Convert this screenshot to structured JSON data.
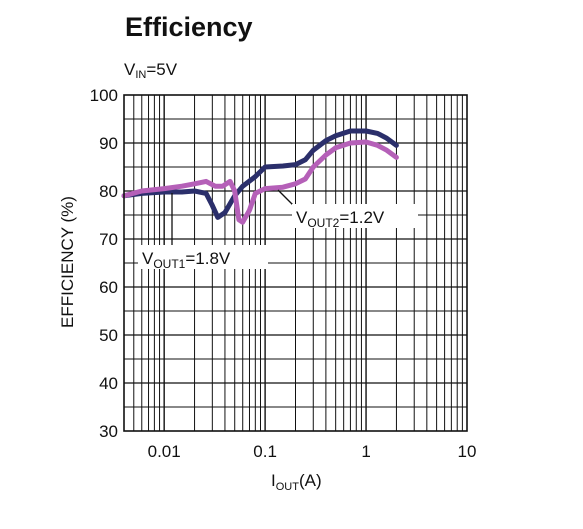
{
  "header": {
    "title": "Efficiency",
    "condition_main": "V",
    "condition_sub": "IN",
    "condition_rest": "=5V"
  },
  "chart_data": {
    "type": "line",
    "title": "Efficiency",
    "subtitle": "VIN=5V",
    "xlabel": "IOUT(A)",
    "ylabel": "EFFICIENCY (%)",
    "xscale": "log",
    "xlim": [
      0.004,
      10
    ],
    "ylim": [
      30,
      100
    ],
    "grid": true,
    "x_ticks": [
      "0.01",
      "0.1",
      "1",
      "10"
    ],
    "y_ticks": [
      "30",
      "40",
      "50",
      "60",
      "70",
      "80",
      "90",
      "100"
    ],
    "series": [
      {
        "name": "VOUT1=1.8V",
        "name_main": "V",
        "name_sub": "OUT1",
        "name_rest": "=1.8V",
        "color": "#2b2f6b",
        "x": [
          0.004,
          0.006,
          0.01,
          0.015,
          0.02,
          0.026,
          0.03,
          0.034,
          0.04,
          0.05,
          0.06,
          0.08,
          0.1,
          0.15,
          0.2,
          0.25,
          0.3,
          0.4,
          0.5,
          0.7,
          1.0,
          1.3,
          1.6,
          2.0
        ],
        "y": [
          79,
          79.5,
          79.8,
          79.8,
          80,
          79.5,
          77,
          74.5,
          75.5,
          79,
          81,
          83,
          85,
          85.2,
          85.5,
          86.5,
          88.5,
          90.5,
          91.5,
          92.5,
          92.5,
          92,
          91,
          89.5
        ]
      },
      {
        "name": "VOUT2=1.2V",
        "name_main": "V",
        "name_sub": "OUT2",
        "name_rest": "=1.2V",
        "color": "#b560b8",
        "x": [
          0.004,
          0.006,
          0.01,
          0.015,
          0.02,
          0.026,
          0.032,
          0.038,
          0.045,
          0.05,
          0.055,
          0.06,
          0.07,
          0.08,
          0.1,
          0.15,
          0.2,
          0.25,
          0.3,
          0.4,
          0.5,
          0.7,
          1.0,
          1.3,
          1.6,
          2.0
        ],
        "y": [
          79,
          80,
          80.5,
          81,
          81.5,
          82,
          81,
          81,
          82,
          80,
          74,
          73.5,
          76,
          79.5,
          80.5,
          80.8,
          81.5,
          82.5,
          85,
          87.5,
          89,
          90,
          90.2,
          89.5,
          88.5,
          87
        ]
      }
    ],
    "annotations": [
      {
        "text": "VOUT1=1.8V",
        "target_series": 0
      },
      {
        "text": "VOUT2=1.2V",
        "target_series": 1
      }
    ]
  }
}
